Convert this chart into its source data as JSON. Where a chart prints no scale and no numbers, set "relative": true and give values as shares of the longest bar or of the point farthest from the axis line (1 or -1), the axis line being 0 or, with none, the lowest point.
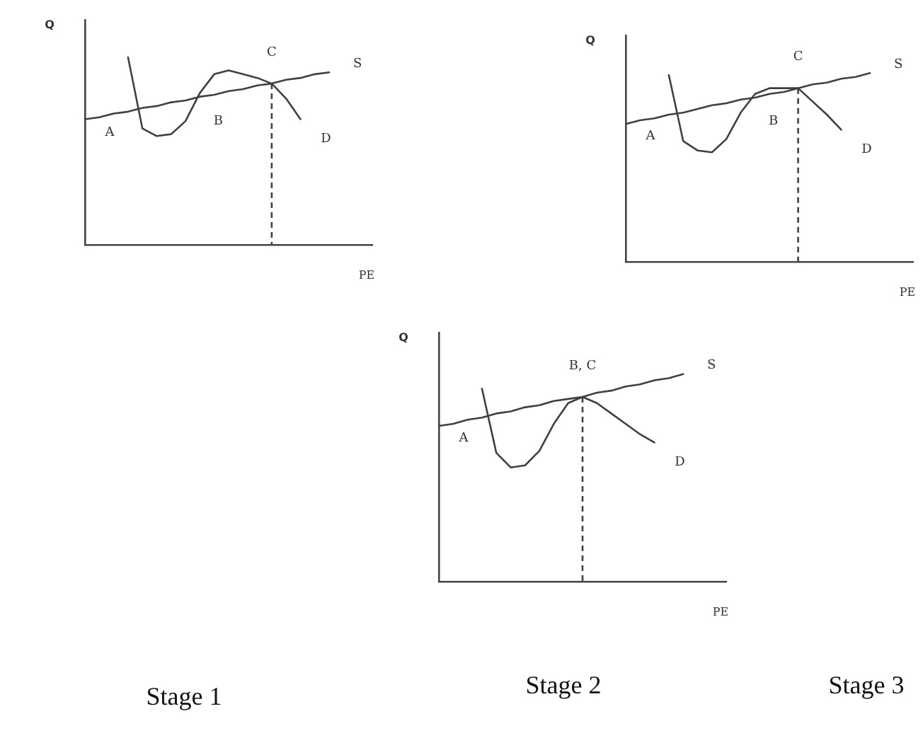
{
  "chart_data": [
    {
      "type": "line",
      "title": "Stage 1",
      "xlabel": "PE",
      "ylabel": "Q",
      "relative": true,
      "legend": false,
      "marker": "none",
      "categories": [
        null,
        null,
        null,
        null,
        null,
        null,
        null,
        null,
        null,
        null,
        null,
        null,
        null,
        null,
        null,
        null,
        null,
        null,
        null,
        null,
        null
      ],
      "series": [
        {
          "color": "#404040",
          "values": [
            0.67,
            0.68,
            0.7,
            0.71,
            0.73,
            0.74,
            0.76,
            0.77,
            0.79,
            0.8,
            0.82,
            0.83,
            0.85,
            0.86,
            0.88,
            0.89,
            0.91,
            0.92,
            null,
            null,
            null
          ]
        },
        {
          "color": "#404040",
          "values": [
            null,
            null,
            null,
            1.0,
            0.62,
            0.58,
            0.59,
            0.66,
            0.81,
            0.91,
            0.93,
            0.91,
            0.89,
            0.86,
            0.78,
            0.67,
            null,
            null,
            null,
            null,
            null
          ]
        }
      ],
      "annotations": [
        "A",
        "B",
        "C",
        "D",
        "S"
      ]
    },
    {
      "type": "line",
      "title": "Stage 3",
      "xlabel": "PE",
      "ylabel": "Q",
      "relative": true,
      "legend": false,
      "marker": "none",
      "categories": [
        null,
        null,
        null,
        null,
        null,
        null,
        null,
        null,
        null,
        null,
        null,
        null,
        null,
        null,
        null,
        null,
        null,
        null,
        null,
        null,
        null
      ],
      "series": [
        {
          "color": "#404040",
          "values": [
            0.73,
            0.75,
            0.76,
            0.78,
            0.79,
            0.81,
            0.83,
            0.84,
            0.86,
            0.87,
            0.89,
            0.9,
            0.92,
            0.94,
            0.95,
            0.97,
            0.98,
            1.0,
            null,
            null,
            null
          ]
        },
        {
          "color": "#404040",
          "values": [
            null,
            null,
            null,
            0.99,
            0.64,
            0.59,
            0.58,
            0.65,
            0.79,
            0.89,
            0.92,
            0.92,
            0.92,
            0.85,
            0.78,
            0.7,
            null,
            null,
            null,
            null,
            null
          ]
        }
      ],
      "annotations": [
        "A",
        "B",
        "C",
        "D",
        "S"
      ]
    },
    {
      "type": "line",
      "title": "Stage 2",
      "xlabel": "PE",
      "ylabel": "Q",
      "relative": true,
      "legend": false,
      "marker": "none",
      "categories": [
        null,
        null,
        null,
        null,
        null,
        null,
        null,
        null,
        null,
        null,
        null,
        null,
        null,
        null,
        null,
        null,
        null,
        null,
        null,
        null,
        null
      ],
      "series": [
        {
          "color": "#404040",
          "values": [
            0.75,
            0.76,
            0.78,
            0.79,
            0.81,
            0.82,
            0.84,
            0.85,
            0.87,
            0.88,
            0.89,
            0.91,
            0.92,
            0.94,
            0.95,
            0.97,
            0.98,
            1.0,
            null,
            null,
            null
          ]
        },
        {
          "color": "#404040",
          "values": [
            null,
            null,
            null,
            0.93,
            0.62,
            0.55,
            0.56,
            0.63,
            0.76,
            0.86,
            0.89,
            0.86,
            0.81,
            0.76,
            0.71,
            0.67,
            null,
            null,
            null,
            null,
            null
          ]
        }
      ],
      "annotations": [
        "A",
        "B, C",
        "D",
        "S"
      ]
    }
  ]
}
